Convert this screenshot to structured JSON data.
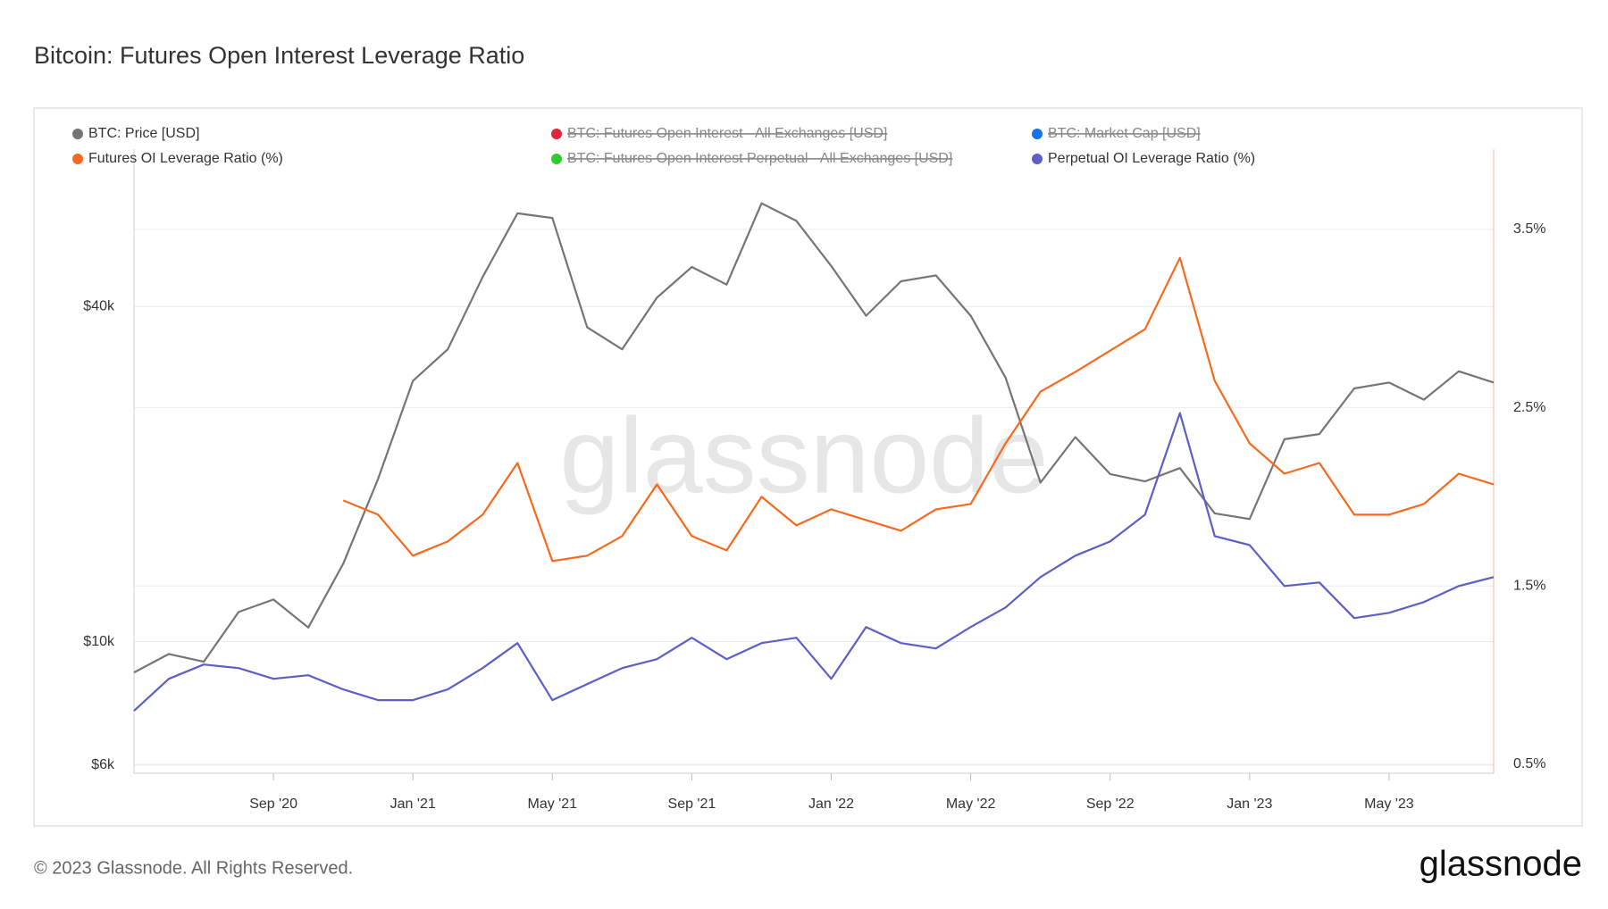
{
  "chart_data": {
    "type": "line",
    "title": "Bitcoin: Futures Open Interest Leverage Ratio",
    "watermark": "glassnode",
    "footer": "© 2023 Glassnode. All Rights Reserved.",
    "brand": "glassnode",
    "x": [
      "2020-05",
      "2020-06",
      "2020-07",
      "2020-08",
      "2020-09",
      "2020-10",
      "2020-11",
      "2020-12",
      "2021-01",
      "2021-02",
      "2021-03",
      "2021-04",
      "2021-05",
      "2021-06",
      "2021-07",
      "2021-08",
      "2021-09",
      "2021-10",
      "2021-11",
      "2021-12",
      "2022-01",
      "2022-02",
      "2022-03",
      "2022-04",
      "2022-05",
      "2022-06",
      "2022-07",
      "2022-08",
      "2022-09",
      "2022-10",
      "2022-11",
      "2022-12",
      "2023-01",
      "2023-02",
      "2023-03",
      "2023-04",
      "2023-05",
      "2023-06",
      "2023-07",
      "2023-08"
    ],
    "xlim": [
      "2020-05",
      "2023-08"
    ],
    "xticks": [
      {
        "value": "2020-09",
        "label": "Sep '20"
      },
      {
        "value": "2021-01",
        "label": "Jan '21"
      },
      {
        "value": "2021-05",
        "label": "May '21"
      },
      {
        "value": "2021-09",
        "label": "Sep '21"
      },
      {
        "value": "2022-01",
        "label": "Jan '22"
      },
      {
        "value": "2022-05",
        "label": "May '22"
      },
      {
        "value": "2022-09",
        "label": "Sep '22"
      },
      {
        "value": "2023-01",
        "label": "Jan '23"
      },
      {
        "value": "2023-05",
        "label": "May '23"
      }
    ],
    "ylim": [
      5800,
      76700
    ],
    "yscale": "log",
    "yticks": [
      {
        "value": 6000,
        "label": "$6k"
      },
      {
        "value": 10000,
        "label": "$10k"
      },
      {
        "value": 40000,
        "label": "$40k"
      }
    ],
    "y2lim": [
      0.45,
      3.95
    ],
    "y2ticks": [
      {
        "value": 0.5,
        "label": "0.5%"
      },
      {
        "value": 1.5,
        "label": "1.5%"
      },
      {
        "value": 2.5,
        "label": "2.5%"
      },
      {
        "value": 3.5,
        "label": "3.5%"
      }
    ],
    "grid": true,
    "series": [
      {
        "name": "BTC: Price [USD]",
        "color": "#757575",
        "visible": true,
        "values": [
          8800,
          9500,
          9200,
          11300,
          11900,
          10600,
          13800,
          19600,
          29400,
          33500,
          45200,
          58800,
          57700,
          36700,
          33500,
          41500,
          47100,
          43800,
          61300,
          57000,
          47300,
          38500,
          44400,
          45500,
          38500,
          29800,
          19300,
          23300,
          20000,
          19400,
          20500,
          17000,
          16600,
          23100,
          23600,
          28500,
          29200,
          27200,
          30600,
          29200
        ]
      },
      {
        "name": "BTC: Futures Open Interest - All Exchanges [USD]",
        "color": "#e0243f",
        "visible": false
      },
      {
        "name": "BTC: Market Cap [USD]",
        "color": "#1672e6",
        "visible": false
      },
      {
        "name": "Futures OI Leverage Ratio (%)",
        "color": "#f7691e",
        "visible": true,
        "axis": "y2",
        "values": [
          null,
          null,
          null,
          null,
          null,
          null,
          1.98,
          1.9,
          1.67,
          1.75,
          1.9,
          2.19,
          1.64,
          1.67,
          1.78,
          2.07,
          1.78,
          1.7,
          2.0,
          1.84,
          1.93,
          1.87,
          1.81,
          1.93,
          1.96,
          2.3,
          2.59,
          2.7,
          2.82,
          2.94,
          3.34,
          2.65,
          2.3,
          2.13,
          2.19,
          1.9,
          1.9,
          1.96,
          2.13,
          2.07
        ]
      },
      {
        "name": "BTC: Futures Open Interest Perpetual - All Exchanges [USD]",
        "color": "#2ecc2e",
        "visible": false
      },
      {
        "name": "Perpetual OI Leverage Ratio (%)",
        "color": "#5b5fc7",
        "visible": true,
        "axis": "y2",
        "values": [
          0.8,
          0.98,
          1.06,
          1.04,
          0.98,
          1.0,
          0.92,
          0.86,
          0.86,
          0.92,
          1.04,
          1.18,
          0.86,
          0.95,
          1.04,
          1.09,
          1.21,
          1.09,
          1.18,
          1.21,
          0.98,
          1.27,
          1.18,
          1.15,
          1.27,
          1.38,
          1.55,
          1.67,
          1.75,
          1.9,
          2.47,
          1.78,
          1.73,
          1.5,
          1.52,
          1.32,
          1.35,
          1.41,
          1.5,
          1.55
        ]
      }
    ]
  }
}
